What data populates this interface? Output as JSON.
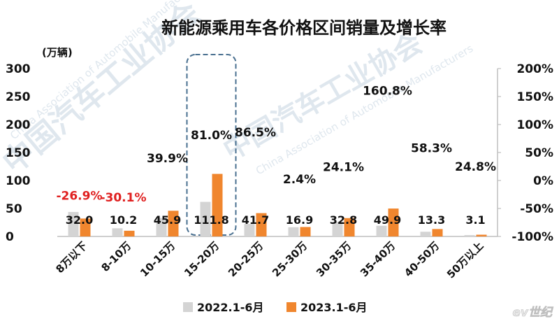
{
  "chart_data": {
    "type": "bar",
    "title": "新能源乘用车各价格区间销量及增长率",
    "y_unit": "(万辆)",
    "categories": [
      "8万以下",
      "8-10万",
      "10-15万",
      "15-20万",
      "20-25万",
      "25-30万",
      "30-35万",
      "35-40万",
      "40-50万",
      "50万以上"
    ],
    "series": [
      {
        "name": "2022.1-6月",
        "color": "#d4d4d4",
        "values": [
          43.8,
          14.6,
          32.8,
          61.8,
          22.4,
          16.5,
          26.4,
          19.1,
          8.4,
          2.5
        ]
      },
      {
        "name": "2023.1-6月",
        "color": "#f0862e",
        "values": [
          32.0,
          10.2,
          45.9,
          111.8,
          41.7,
          16.9,
          32.8,
          49.9,
          13.3,
          3.1
        ]
      }
    ],
    "value_labels": [
      "32.0",
      "10.2",
      "45.9",
      "111.8",
      "41.7",
      "16.9",
      "32.8",
      "49.9",
      "13.3",
      "3.1"
    ],
    "growth": [
      -26.9,
      -30.1,
      39.9,
      81.0,
      86.5,
      2.4,
      24.1,
      160.8,
      58.3,
      24.8
    ],
    "growth_labels": [
      "-26.9%",
      "-30.1%",
      "39.9%",
      "81.0%",
      "86.5%",
      "2.4%",
      "24.1%",
      "160.8%",
      "58.3%",
      "24.8%"
    ],
    "negative_color": "#e02020",
    "positive_color": "#111111",
    "ylim": [
      0,
      300
    ],
    "yticks": [
      "0",
      "50",
      "100",
      "150",
      "200",
      "250",
      "300"
    ],
    "y2lim": [
      -100,
      200
    ],
    "y2ticks": [
      "-100%",
      "-50%",
      "0%",
      "50%",
      "100%",
      "150%",
      "200%"
    ],
    "highlight_category": "15-20万",
    "highlight_color": "#4a7090",
    "legend_position": "bottom",
    "grid": false
  },
  "watermark": {
    "cn_text": "中国汽车工业协会",
    "en_text": "China Association of Automobile Manufacturers",
    "brand_text": "ev世纪"
  }
}
